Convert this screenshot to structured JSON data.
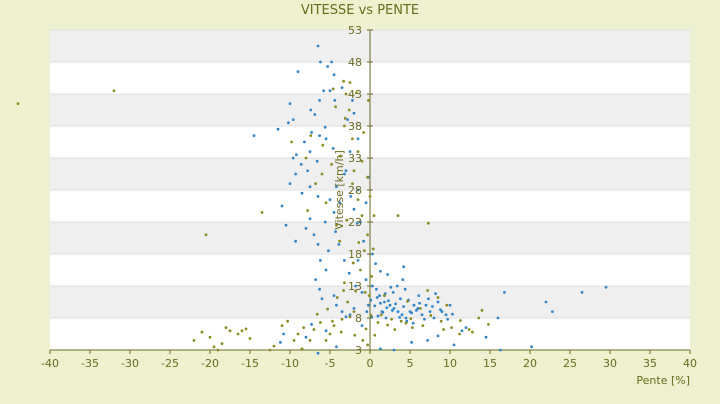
{
  "chart_data": {
    "type": "scatter",
    "title": "VITESSE vs PENTE",
    "xlabel": "Pente [%]",
    "ylabel": "Vitesse [km/h]",
    "xlim": [
      -40,
      40
    ],
    "ylim": [
      3,
      53
    ],
    "x_ticks": [
      -40,
      -35,
      -30,
      -25,
      -20,
      -15,
      -10,
      -5,
      0,
      5,
      10,
      15,
      20,
      25,
      30,
      35,
      40
    ],
    "y_ticks": [
      3,
      8,
      13,
      18,
      23,
      28,
      33,
      38,
      43,
      48,
      53
    ],
    "grid": true,
    "colors": {
      "background": "#edf1cf",
      "plot_band_light": "#ffffff",
      "plot_band_dark": "#efefef",
      "series_blue": "#2e84c8",
      "series_olive": "#8a8a1e",
      "axis": "#6a6a20",
      "tick_text": "#6a6a1e"
    },
    "series": [
      {
        "color": "#2e84c8",
        "points": [
          [
            -6.5,
            50.5
          ],
          [
            -6.2,
            48
          ],
          [
            -4.8,
            48
          ],
          [
            -4.5,
            46
          ],
          [
            -9,
            46.5
          ],
          [
            -5,
            43.5
          ],
          [
            -5.8,
            43.5
          ],
          [
            -6.3,
            42
          ],
          [
            -10,
            41.5
          ],
          [
            -9.6,
            39
          ],
          [
            -10.2,
            38.5
          ],
          [
            -11.5,
            37.5
          ],
          [
            -14.5,
            36.5
          ],
          [
            -7.3,
            37
          ],
          [
            -6.3,
            36.5
          ],
          [
            -5.5,
            36
          ],
          [
            -7.5,
            34
          ],
          [
            -9.6,
            33
          ],
          [
            -8.6,
            32
          ],
          [
            -7.8,
            31
          ],
          [
            -9.3,
            30.5
          ],
          [
            -10,
            29
          ],
          [
            -7.5,
            28.5
          ],
          [
            -8.5,
            27.5
          ],
          [
            -6.5,
            27
          ],
          [
            -5,
            26.5
          ],
          [
            -11,
            25.5
          ],
          [
            -4.5,
            24.5
          ],
          [
            -7.5,
            23.5
          ],
          [
            -10.5,
            22.5
          ],
          [
            -8,
            22
          ],
          [
            -7,
            21
          ],
          [
            -9.3,
            20
          ],
          [
            -6.5,
            19.5
          ],
          [
            -5.2,
            18.5
          ],
          [
            -6.2,
            17
          ],
          [
            -5.5,
            15.5
          ],
          [
            -6.8,
            14
          ],
          [
            -6.3,
            12.5
          ],
          [
            -4.5,
            11.5
          ],
          [
            -6,
            11
          ],
          [
            -4.2,
            10
          ],
          [
            -3.5,
            9
          ],
          [
            -2.5,
            8.5
          ],
          [
            -1,
            12
          ],
          [
            -0.5,
            14
          ],
          [
            -1.5,
            17
          ],
          [
            -0.8,
            20
          ],
          [
            -1.2,
            23
          ],
          [
            -2,
            25
          ],
          [
            -0.5,
            26
          ],
          [
            -1.5,
            28
          ],
          [
            -0.2,
            30
          ],
          [
            -3,
            31
          ],
          [
            -2.5,
            34
          ],
          [
            -1.5,
            36
          ],
          [
            -2.8,
            39
          ],
          [
            -2.2,
            42
          ],
          [
            -3.5,
            44
          ],
          [
            -2,
            40
          ],
          [
            0.3,
            13
          ],
          [
            0.8,
            12.5
          ],
          [
            1.2,
            11.5
          ],
          [
            1.8,
            10.5
          ],
          [
            2.5,
            10
          ],
          [
            3,
            9.5
          ],
          [
            3.5,
            9
          ],
          [
            4,
            8.5
          ],
          [
            4.5,
            8
          ],
          [
            5,
            9
          ],
          [
            5.5,
            10
          ],
          [
            6,
            9.5
          ],
          [
            6.5,
            8.5
          ],
          [
            7,
            10
          ],
          [
            7.5,
            9
          ],
          [
            8,
            8
          ],
          [
            8.5,
            10.5
          ],
          [
            9,
            9
          ],
          [
            9.5,
            8.5
          ],
          [
            10,
            10
          ],
          [
            1.5,
            9
          ],
          [
            2,
            8
          ],
          [
            2.8,
            9.2
          ],
          [
            3.2,
            10.2
          ],
          [
            3.8,
            11
          ],
          [
            4.2,
            9.8
          ],
          [
            4.8,
            10.8
          ],
          [
            5.2,
            8.8
          ],
          [
            5.8,
            9.2
          ],
          [
            6.2,
            10.3
          ],
          [
            1,
            8.3
          ],
          [
            1.6,
            8.9
          ],
          [
            2.3,
            10.7
          ],
          [
            2.9,
            12
          ],
          [
            3.4,
            13
          ],
          [
            4.4,
            12.5
          ],
          [
            0.6,
            9.9
          ],
          [
            1.3,
            10.3
          ],
          [
            2.1,
            9.6
          ],
          [
            3.7,
            8.1
          ],
          [
            4.6,
            7.5
          ],
          [
            5.4,
            7.2
          ],
          [
            6.8,
            7.8
          ],
          [
            7.8,
            9.8
          ],
          [
            8.8,
            9.3
          ],
          [
            9.7,
            7.8
          ],
          [
            10.3,
            8.6
          ],
          [
            0.2,
            8.2
          ],
          [
            0.9,
            11.2
          ],
          [
            1.9,
            11.8
          ],
          [
            2.6,
            12.8
          ],
          [
            4.1,
            14
          ],
          [
            6.1,
            11.5
          ],
          [
            7.3,
            11
          ],
          [
            8.2,
            11.8
          ],
          [
            4.2,
            16
          ],
          [
            2.2,
            14.8
          ],
          [
            1.3,
            15.3
          ],
          [
            0.7,
            16.5
          ],
          [
            0.3,
            18
          ],
          [
            11.5,
            6
          ],
          [
            14.5,
            5
          ],
          [
            16,
            8
          ],
          [
            16.8,
            12
          ],
          [
            22,
            10.5
          ],
          [
            22.8,
            9
          ],
          [
            26.5,
            12
          ],
          [
            29.5,
            12.8
          ],
          [
            20.2,
            3.5
          ],
          [
            16.3,
            3
          ],
          [
            10.5,
            3.8
          ],
          [
            7.2,
            4.5
          ],
          [
            8.5,
            5.2
          ],
          [
            12,
            6.5
          ],
          [
            3,
            3
          ],
          [
            5.2,
            4.2
          ],
          [
            1.3,
            3.2
          ],
          [
            -0.4,
            9
          ],
          [
            -0.2,
            10
          ],
          [
            0.1,
            10.8
          ],
          [
            -10.8,
            5.5
          ],
          [
            -11.2,
            4.2
          ],
          [
            -6.5,
            2.5
          ],
          [
            -8,
            5
          ],
          [
            -7.3,
            7
          ],
          [
            -5.5,
            6
          ],
          [
            -4.2,
            3.5
          ],
          [
            -3,
            8.2
          ],
          [
            -2,
            9.5
          ],
          [
            -1,
            6.8
          ],
          [
            -1.8,
            13
          ],
          [
            -2.6,
            15
          ],
          [
            -3.2,
            17
          ],
          [
            -3.9,
            19.5
          ],
          [
            -4.3,
            21.5
          ],
          [
            -5.6,
            23
          ],
          [
            -3.8,
            26
          ],
          [
            -4.2,
            28.5
          ],
          [
            -3.2,
            30.5
          ],
          [
            -6.6,
            32.5
          ],
          [
            -4.6,
            34.5
          ],
          [
            -5.6,
            37.8
          ],
          [
            -6.9,
            39.8
          ],
          [
            -4.4,
            42
          ],
          [
            -5.3,
            47.3
          ],
          [
            -7.4,
            40.5
          ],
          [
            -8.2,
            35.5
          ],
          [
            -9.2,
            33.5
          ],
          [
            -2.4,
            27
          ],
          [
            -1.6,
            22.8
          ]
        ]
      },
      {
        "color": "#8a8a1e",
        "points": [
          [
            -44,
            41.5
          ],
          [
            -32,
            43.5
          ],
          [
            -20.5,
            21
          ],
          [
            -22,
            4.5
          ],
          [
            -21,
            5.8
          ],
          [
            -20,
            5
          ],
          [
            -19.5,
            3.5
          ],
          [
            -19,
            3
          ],
          [
            -18.5,
            4
          ],
          [
            -18,
            6.5
          ],
          [
            -17.5,
            6
          ],
          [
            -16.5,
            5.5
          ],
          [
            -16,
            6
          ],
          [
            -15.5,
            6.3
          ],
          [
            -15,
            4.8
          ],
          [
            -13.5,
            24.5
          ],
          [
            -12.5,
            3
          ],
          [
            -12,
            3.6
          ],
          [
            -11,
            6.8
          ],
          [
            -10.3,
            7.5
          ],
          [
            -9.5,
            4.5
          ],
          [
            -9,
            5.5
          ],
          [
            -8.3,
            6.5
          ],
          [
            -8.5,
            3.2
          ],
          [
            -7.5,
            4.5
          ],
          [
            -7,
            6.2
          ],
          [
            -6.2,
            7.3
          ],
          [
            -5.5,
            4.5
          ],
          [
            -5,
            5.5
          ],
          [
            -4.5,
            6.8
          ],
          [
            -3.5,
            7.8
          ],
          [
            -2.5,
            8.2
          ],
          [
            -3.2,
            13.5
          ],
          [
            -2.8,
            10.5
          ],
          [
            -2,
            9
          ],
          [
            -1.8,
            12.2
          ],
          [
            -1.2,
            15.5
          ],
          [
            -0.7,
            18.5
          ],
          [
            -0.3,
            21
          ],
          [
            -1,
            24
          ],
          [
            -1.5,
            26.5
          ],
          [
            -2.2,
            29
          ],
          [
            -2,
            31
          ],
          [
            -1,
            32.5
          ],
          [
            -1.5,
            34
          ],
          [
            -2.2,
            36
          ],
          [
            -3.2,
            38
          ],
          [
            -2.6,
            40.5
          ],
          [
            -3,
            43
          ],
          [
            -3.3,
            45
          ],
          [
            -6,
            30.5
          ],
          [
            -8,
            33
          ],
          [
            -6.8,
            29
          ],
          [
            -5.5,
            26
          ],
          [
            -4.2,
            22.5
          ],
          [
            -3.8,
            20
          ],
          [
            -0.6,
            12
          ],
          [
            0,
            27
          ],
          [
            0.5,
            24
          ],
          [
            -0.3,
            3.8
          ],
          [
            -0.3,
            30
          ],
          [
            -0.8,
            37
          ],
          [
            -0.2,
            42
          ],
          [
            -9.8,
            35.5
          ],
          [
            -7.4,
            36.5
          ],
          [
            -7.8,
            24.8
          ],
          [
            3.5,
            24
          ],
          [
            7.3,
            22.8
          ],
          [
            1.4,
            8.5
          ],
          [
            2.7,
            7.8
          ],
          [
            3.9,
            7.5
          ],
          [
            5.1,
            7.9
          ],
          [
            6.3,
            9.5
          ],
          [
            7.6,
            8.4
          ],
          [
            8.9,
            7.5
          ],
          [
            10.2,
            6.5
          ],
          [
            11.3,
            7.6
          ],
          [
            12.4,
            6.2
          ],
          [
            13.6,
            8
          ],
          [
            14.8,
            7
          ],
          [
            8.5,
            11.2
          ],
          [
            7.2,
            12.3
          ],
          [
            9.6,
            10
          ],
          [
            11.2,
            5.5
          ],
          [
            12.8,
            5.8
          ],
          [
            14,
            9.2
          ],
          [
            6.6,
            6.8
          ],
          [
            5.3,
            6.5
          ],
          [
            4.5,
            7.2
          ],
          [
            2.2,
            6.9
          ],
          [
            1,
            7.3
          ],
          [
            3.1,
            6.2
          ],
          [
            1.8,
            11.5
          ],
          [
            4.7,
            10.6
          ],
          [
            9.2,
            6.2
          ],
          [
            0.6,
            5.3
          ],
          [
            -0.9,
            4.5
          ],
          [
            -0.5,
            6.3
          ],
          [
            -1.9,
            5.3
          ],
          [
            -3.6,
            5.8
          ],
          [
            -4.7,
            7.5
          ],
          [
            -6.6,
            8.6
          ],
          [
            -5.3,
            9.4
          ],
          [
            -4.1,
            11.2
          ],
          [
            -3.3,
            12.3
          ],
          [
            -2.1,
            16.6
          ],
          [
            -1.4,
            19.8
          ],
          [
            -2.9,
            23.3
          ],
          [
            -4.8,
            32
          ],
          [
            -3.7,
            33.3
          ],
          [
            -5.9,
            35
          ],
          [
            -3.1,
            39.2
          ],
          [
            -4.3,
            41
          ],
          [
            -4.6,
            43.8
          ],
          [
            -1.7,
            43.2
          ],
          [
            -2.5,
            44.8
          ],
          [
            0.4,
            18.8
          ],
          [
            0.2,
            14.5
          ],
          [
            -0.1,
            11.5
          ],
          [
            0.1,
            8.4
          ]
        ]
      }
    ]
  }
}
